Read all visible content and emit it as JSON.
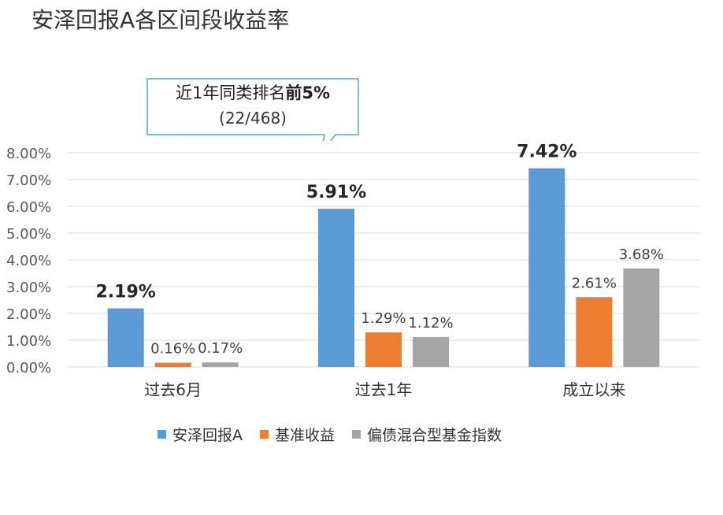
{
  "chart_data": {
    "type": "bar",
    "title": "安泽回报A各区间段收益率",
    "categories": [
      "过去6月",
      "过去1年",
      "成立以来"
    ],
    "series": [
      {
        "name": "安泽回报A",
        "color": "#5B9BD5",
        "values": [
          2.19,
          5.91,
          7.42
        ],
        "labels": [
          "2.19%",
          "5.91%",
          "7.42%"
        ]
      },
      {
        "name": "基准收益",
        "color": "#ED7D31",
        "values": [
          0.16,
          1.29,
          2.61
        ],
        "labels": [
          "0.16%",
          "1.29%",
          "2.61%"
        ]
      },
      {
        "name": "偏债混合型基金指数",
        "color": "#A5A5A5",
        "values": [
          0.17,
          1.12,
          3.68
        ],
        "labels": [
          "0.17%",
          "1.12%",
          "3.68%"
        ]
      }
    ],
    "ylim": [
      0,
      8
    ],
    "yticks": [
      "0.00%",
      "1.00%",
      "2.00%",
      "3.00%",
      "4.00%",
      "5.00%",
      "6.00%",
      "7.00%",
      "8.00%"
    ],
    "grid": true,
    "legend": "bottom",
    "annotation": {
      "line1_prefix": "近1年同类排名",
      "line1_bold": "前5%",
      "line2": "(22/468)"
    }
  }
}
